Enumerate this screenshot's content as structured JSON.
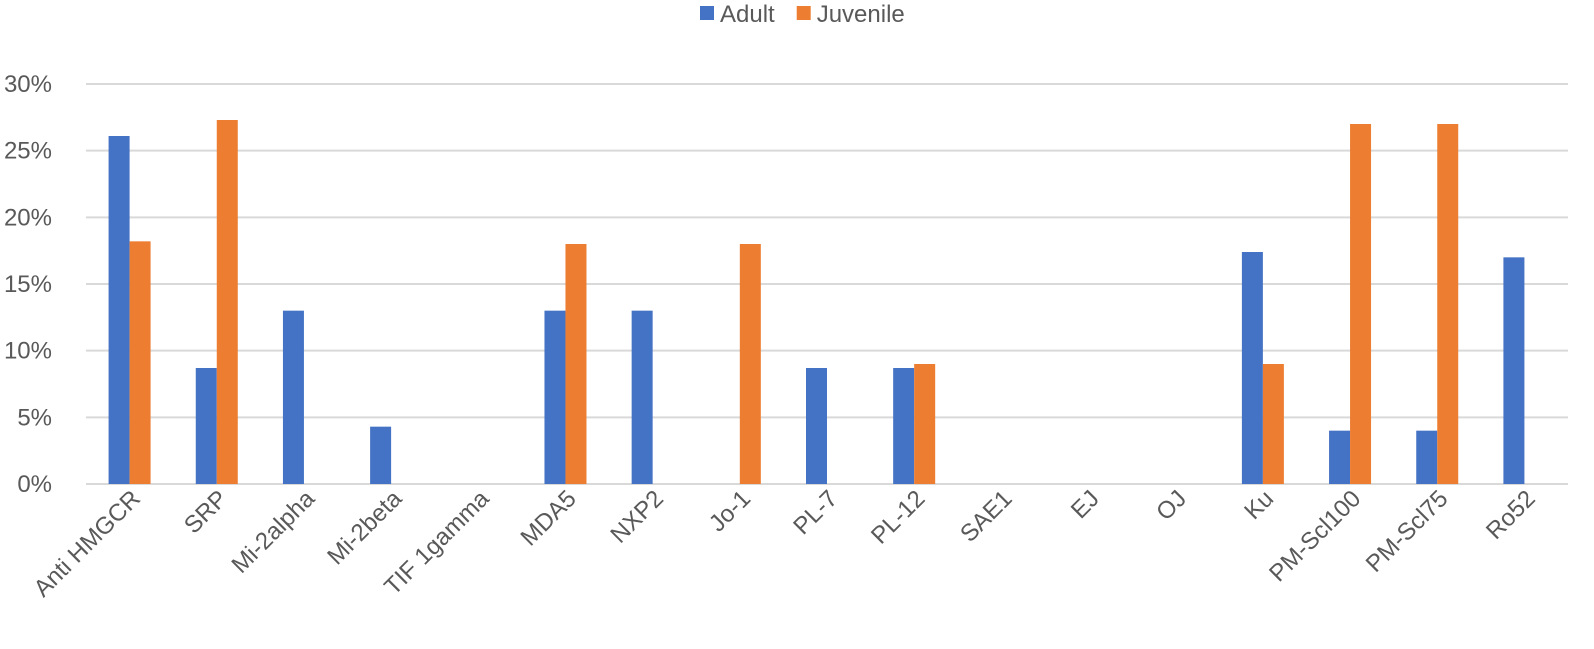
{
  "chart_data": {
    "type": "bar",
    "title": "",
    "xlabel": "",
    "ylabel": "",
    "ylim": [
      0,
      30
    ],
    "yticks": [
      "0%",
      "5%",
      "10%",
      "15%",
      "20%",
      "25%",
      "30%"
    ],
    "ytick_values": [
      0,
      5,
      10,
      15,
      20,
      25,
      30
    ],
    "grid": true,
    "legend_position": "top",
    "categories": [
      "Anti HMGCR",
      "SRP",
      "Mi-2alpha",
      "Mi-2beta",
      "TIF 1gamma",
      "MDA5",
      "NXP2",
      "Jo-1",
      "PL-7",
      "PL-12",
      "SAE1",
      "EJ",
      "OJ",
      "Ku",
      "PM-Scl100",
      "PM-Scl75",
      "Ro52"
    ],
    "series": [
      {
        "name": "Adult",
        "color": "#4472C4",
        "values": [
          26.1,
          8.7,
          13.0,
          4.3,
          0,
          13.0,
          13.0,
          0,
          8.7,
          8.7,
          0,
          0,
          0,
          17.4,
          4.0,
          4.0,
          17.0
        ]
      },
      {
        "name": "Juvenile",
        "color": "#ED7D31",
        "values": [
          18.2,
          27.3,
          0,
          0,
          0,
          18.0,
          0,
          18.0,
          0,
          9.0,
          0,
          0,
          0,
          9.0,
          27.0,
          27.0,
          0
        ]
      }
    ]
  }
}
